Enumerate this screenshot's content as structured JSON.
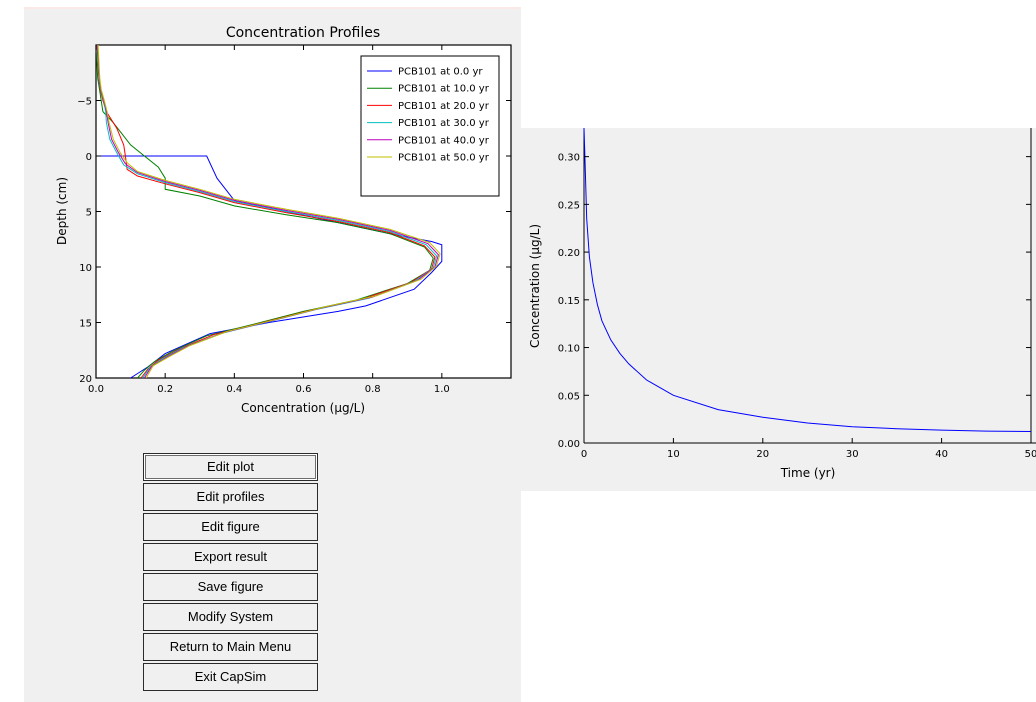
{
  "profiles_chart": {
    "chart_data": {
      "type": "line",
      "title": "Concentration Profiles",
      "xlabel": "Concentration (μg/L)",
      "ylabel": "Depth (cm)",
      "xlim": [
        0.0,
        1.2
      ],
      "ylim": [
        20,
        -10
      ],
      "y_inverted": true,
      "xticks": [
        "0.0",
        "0.2",
        "0.4",
        "0.6",
        "0.8",
        "1.0"
      ],
      "yticks": [
        "−5",
        "0",
        "5",
        "10",
        "15",
        "20"
      ],
      "legend_placement": "top-right",
      "grid": false,
      "series": [
        {
          "name": "PCB101 at 0.0 yr",
          "color": "#0000ff",
          "points": [
            [
              0.0,
              0
            ],
            [
              0.32,
              0
            ],
            [
              0.35,
              2
            ],
            [
              0.4,
              4
            ],
            [
              0.55,
              5
            ],
            [
              0.7,
              6
            ],
            [
              0.85,
              7
            ],
            [
              0.97,
              7.7
            ],
            [
              1.0,
              8
            ],
            [
              1.0,
              9.5
            ],
            [
              0.97,
              10.5
            ],
            [
              0.92,
              12
            ],
            [
              0.78,
              13.5
            ],
            [
              0.7,
              14
            ],
            [
              0.5,
              15
            ],
            [
              0.33,
              16
            ],
            [
              0.2,
              17.8
            ],
            [
              0.15,
              19
            ],
            [
              0.1,
              20
            ]
          ]
        },
        {
          "name": "PCB101 at 10.0 yr",
          "color": "#008000",
          "points": [
            [
              0.0,
              -10
            ],
            [
              0.005,
              -7
            ],
            [
              0.01,
              -6
            ],
            [
              0.015,
              -5
            ],
            [
              0.02,
              -4
            ],
            [
              0.05,
              -3
            ],
            [
              0.1,
              -1
            ],
            [
              0.14,
              0
            ],
            [
              0.18,
              1
            ],
            [
              0.2,
              2
            ],
            [
              0.2,
              3
            ],
            [
              0.3,
              3.6
            ],
            [
              0.4,
              4.5
            ],
            [
              0.55,
              5.3
            ],
            [
              0.7,
              6
            ],
            [
              0.85,
              7
            ],
            [
              0.95,
              8.2
            ],
            [
              0.975,
              9.2
            ],
            [
              0.965,
              10.3
            ],
            [
              0.9,
              11.5
            ],
            [
              0.75,
              13
            ],
            [
              0.6,
              14
            ],
            [
              0.45,
              15.2
            ],
            [
              0.32,
              16.2
            ],
            [
              0.22,
              17.6
            ],
            [
              0.17,
              18.5
            ],
            [
              0.14,
              19.3
            ],
            [
              0.12,
              20
            ]
          ]
        },
        {
          "name": "PCB101 at 20.0 yr",
          "color": "#ff0000",
          "points": [
            [
              0.003,
              -10
            ],
            [
              0.008,
              -7
            ],
            [
              0.012,
              -6
            ],
            [
              0.02,
              -5
            ],
            [
              0.03,
              -4
            ],
            [
              0.06,
              -2.5
            ],
            [
              0.08,
              -1
            ],
            [
              0.085,
              0
            ],
            [
              0.09,
              1.2
            ],
            [
              0.12,
              1.8
            ],
            [
              0.2,
              2.5
            ],
            [
              0.3,
              3.3
            ],
            [
              0.4,
              4.2
            ],
            [
              0.55,
              5.1
            ],
            [
              0.7,
              5.9
            ],
            [
              0.85,
              6.9
            ],
            [
              0.95,
              8.1
            ],
            [
              0.98,
              9.1
            ],
            [
              0.97,
              10.2
            ],
            [
              0.91,
              11.4
            ],
            [
              0.77,
              12.9
            ],
            [
              0.62,
              13.9
            ],
            [
              0.47,
              15.1
            ],
            [
              0.34,
              16.1
            ],
            [
              0.24,
              17.4
            ],
            [
              0.18,
              18.4
            ],
            [
              0.15,
              19.2
            ],
            [
              0.13,
              20
            ]
          ]
        },
        {
          "name": "PCB101 at 30.0 yr",
          "color": "#00bfbf",
          "points": [
            [
              0.004,
              -10
            ],
            [
              0.009,
              -7
            ],
            [
              0.013,
              -6
            ],
            [
              0.022,
              -5
            ],
            [
              0.028,
              -4
            ],
            [
              0.03,
              -3
            ],
            [
              0.04,
              -1.5
            ],
            [
              0.06,
              -0.3
            ],
            [
              0.08,
              0.8
            ],
            [
              0.12,
              1.6
            ],
            [
              0.2,
              2.4
            ],
            [
              0.3,
              3.2
            ],
            [
              0.4,
              4.1
            ],
            [
              0.55,
              5.0
            ],
            [
              0.7,
              5.8
            ],
            [
              0.85,
              6.8
            ],
            [
              0.955,
              8.0
            ],
            [
              0.985,
              9.0
            ],
            [
              0.975,
              10.1
            ],
            [
              0.92,
              11.3
            ],
            [
              0.79,
              12.8
            ],
            [
              0.64,
              13.8
            ],
            [
              0.49,
              15.0
            ],
            [
              0.36,
              16.0
            ],
            [
              0.25,
              17.3
            ],
            [
              0.19,
              18.3
            ],
            [
              0.155,
              19.1
            ],
            [
              0.135,
              20
            ]
          ]
        },
        {
          "name": "PCB101 at 40.0 yr",
          "color": "#bf00bf",
          "points": [
            [
              0.005,
              -10
            ],
            [
              0.01,
              -7
            ],
            [
              0.014,
              -6
            ],
            [
              0.023,
              -5
            ],
            [
              0.03,
              -4
            ],
            [
              0.035,
              -3
            ],
            [
              0.045,
              -1.5
            ],
            [
              0.065,
              -0.3
            ],
            [
              0.085,
              0.7
            ],
            [
              0.12,
              1.5
            ],
            [
              0.2,
              2.3
            ],
            [
              0.3,
              3.1
            ],
            [
              0.4,
              4.0
            ],
            [
              0.55,
              4.9
            ],
            [
              0.7,
              5.7
            ],
            [
              0.85,
              6.7
            ],
            [
              0.96,
              7.9
            ],
            [
              0.99,
              8.9
            ],
            [
              0.98,
              10.0
            ],
            [
              0.93,
              11.2
            ],
            [
              0.8,
              12.7
            ],
            [
              0.65,
              13.7
            ],
            [
              0.5,
              14.9
            ],
            [
              0.37,
              15.9
            ],
            [
              0.26,
              17.2
            ],
            [
              0.2,
              18.2
            ],
            [
              0.16,
              19.0
            ],
            [
              0.14,
              20
            ]
          ]
        },
        {
          "name": "PCB101 at 50.0 yr",
          "color": "#bfbf00",
          "points": [
            [
              0.006,
              -10
            ],
            [
              0.011,
              -7
            ],
            [
              0.015,
              -6
            ],
            [
              0.024,
              -5
            ],
            [
              0.032,
              -4
            ],
            [
              0.038,
              -3
            ],
            [
              0.05,
              -1.5
            ],
            [
              0.07,
              -0.3
            ],
            [
              0.09,
              0.6
            ],
            [
              0.12,
              1.4
            ],
            [
              0.2,
              2.2
            ],
            [
              0.3,
              3.0
            ],
            [
              0.4,
              3.9
            ],
            [
              0.55,
              4.8
            ],
            [
              0.7,
              5.6
            ],
            [
              0.85,
              6.6
            ],
            [
              0.965,
              7.8
            ],
            [
              0.995,
              8.8
            ],
            [
              0.985,
              9.9
            ],
            [
              0.94,
              11.1
            ],
            [
              0.81,
              12.6
            ],
            [
              0.66,
              13.6
            ],
            [
              0.51,
              14.8
            ],
            [
              0.38,
              15.8
            ],
            [
              0.27,
              17.1
            ],
            [
              0.21,
              18.1
            ],
            [
              0.165,
              18.9
            ],
            [
              0.145,
              20
            ]
          ]
        }
      ]
    }
  },
  "time_chart": {
    "chart_data": {
      "type": "line",
      "title": "",
      "xlabel": "Time (yr)",
      "ylabel": "Concentration (μg/L)",
      "xlim": [
        0,
        50
      ],
      "ylim": [
        0.0,
        0.33
      ],
      "xticks": [
        "0",
        "10",
        "20",
        "30",
        "40",
        "50"
      ],
      "yticks": [
        "0.00",
        "0.05",
        "0.10",
        "0.15",
        "0.20",
        "0.25",
        "0.30"
      ],
      "grid": false,
      "series": [
        {
          "color": "#0000ff",
          "points": [
            [
              0,
              0.33
            ],
            [
              0.1,
              0.3
            ],
            [
              0.3,
              0.235
            ],
            [
              0.6,
              0.195
            ],
            [
              1,
              0.168
            ],
            [
              1.5,
              0.145
            ],
            [
              2,
              0.128
            ],
            [
              3,
              0.108
            ],
            [
              4,
              0.094
            ],
            [
              5,
              0.083
            ],
            [
              7,
              0.066
            ],
            [
              10,
              0.05
            ],
            [
              15,
              0.035
            ],
            [
              20,
              0.027
            ],
            [
              25,
              0.021
            ],
            [
              30,
              0.017
            ],
            [
              35,
              0.015
            ],
            [
              40,
              0.0135
            ],
            [
              45,
              0.0125
            ],
            [
              50,
              0.012
            ]
          ]
        }
      ]
    }
  },
  "buttons": {
    "edit_plot": "Edit plot",
    "edit_profiles": "Edit profiles",
    "edit_figure": "Edit figure",
    "export_result": "Export result",
    "save_figure": "Save figure",
    "modify_system": "Modify System",
    "return_main": "Return to Main Menu",
    "exit": "Exit CapSim"
  }
}
